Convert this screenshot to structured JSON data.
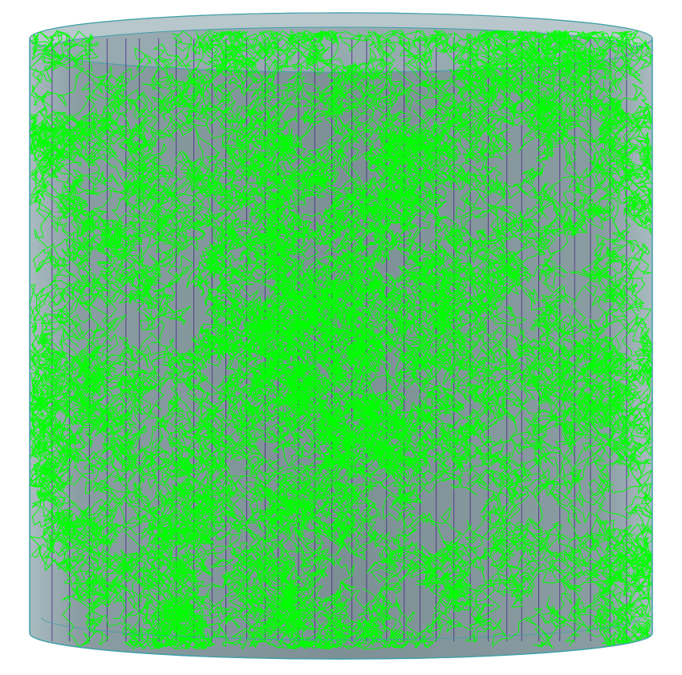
{
  "scene": {
    "subject": "cylinder-with-particle-tracks",
    "colors": {
      "background": "#ffffff",
      "cylinder_fill": "#9fb2b8",
      "cylinder_inner": "#7f9397",
      "cylinder_edge": "#3fa0a8",
      "rod_lines": "#4a2f86",
      "tracks": "#00ff00",
      "top_ellipse_fill": "#b9c9cd"
    },
    "rod_count": 34
  }
}
